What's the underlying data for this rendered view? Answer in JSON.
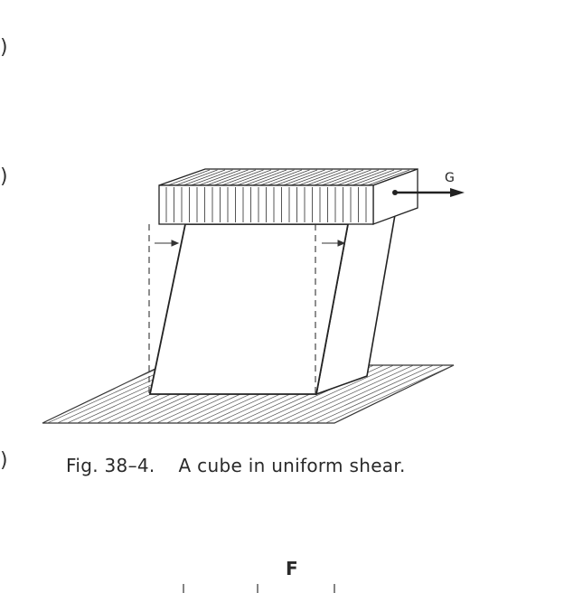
{
  "figure": {
    "force_label": "G",
    "caption_number": "Fig. 38–4.",
    "caption_text": "A cube in uniform shear.",
    "next_figure_label": "F"
  }
}
